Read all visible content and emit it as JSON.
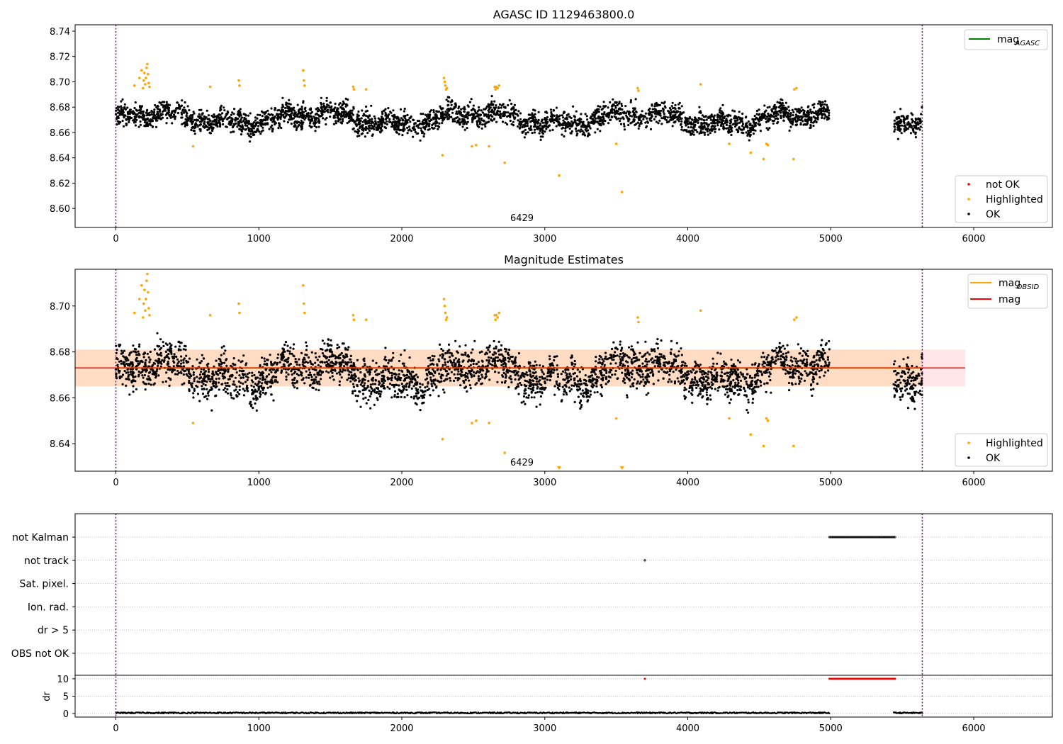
{
  "chart_data": [
    {
      "type": "scatter",
      "title": "AGASC ID 1129463800.0",
      "xlim": [
        -285,
        6550
      ],
      "ylim": [
        8.585,
        8.745
      ],
      "xticks": [
        "0",
        "1000",
        "2000",
        "3000",
        "4000",
        "5000",
        "6000"
      ],
      "yticks": [
        "8.60",
        "8.62",
        "8.64",
        "8.66",
        "8.68",
        "8.70",
        "8.72",
        "8.74"
      ],
      "annotation": "6429",
      "vlines": [
        0,
        5640
      ],
      "legend_upper": [
        {
          "label": "mag",
          "sub": "AGASC",
          "color": "#008000"
        }
      ],
      "legend_lower": [
        {
          "label": "not OK",
          "color": "#ff0000"
        },
        {
          "label": "Highlighted",
          "color": "#ffa500"
        },
        {
          "label": "OK",
          "color": "#000000"
        }
      ],
      "series": [
        {
          "name": "OK",
          "segments": [
            [
              0,
              4990
            ],
            [
              5440,
              5640
            ]
          ],
          "center": 8.671,
          "highlighted": [
            {
              "x": 130,
              "y": 8.697
            },
            {
              "x": 165,
              "y": 8.703
            },
            {
              "x": 180,
              "y": 8.709
            },
            {
              "x": 190,
              "y": 8.695
            },
            {
              "x": 195,
              "y": 8.701
            },
            {
              "x": 200,
              "y": 8.707
            },
            {
              "x": 205,
              "y": 8.698
            },
            {
              "x": 210,
              "y": 8.703
            },
            {
              "x": 215,
              "y": 8.711
            },
            {
              "x": 220,
              "y": 8.714
            },
            {
              "x": 225,
              "y": 8.706
            },
            {
              "x": 230,
              "y": 8.699
            },
            {
              "x": 235,
              "y": 8.696
            },
            {
              "x": 540,
              "y": 8.649
            },
            {
              "x": 660,
              "y": 8.696
            },
            {
              "x": 860,
              "y": 8.701
            },
            {
              "x": 865,
              "y": 8.697
            },
            {
              "x": 1310,
              "y": 8.709
            },
            {
              "x": 1315,
              "y": 8.701
            },
            {
              "x": 1320,
              "y": 8.697
            },
            {
              "x": 1660,
              "y": 8.696
            },
            {
              "x": 1665,
              "y": 8.694
            },
            {
              "x": 1750,
              "y": 8.694
            },
            {
              "x": 2285,
              "y": 8.642
            },
            {
              "x": 2295,
              "y": 8.703
            },
            {
              "x": 2300,
              "y": 8.7
            },
            {
              "x": 2305,
              "y": 8.697
            },
            {
              "x": 2310,
              "y": 8.694
            },
            {
              "x": 2315,
              "y": 8.695
            },
            {
              "x": 2490,
              "y": 8.649
            },
            {
              "x": 2520,
              "y": 8.65
            },
            {
              "x": 2610,
              "y": 8.649
            },
            {
              "x": 2650,
              "y": 8.696
            },
            {
              "x": 2655,
              "y": 8.694
            },
            {
              "x": 2660,
              "y": 8.696
            },
            {
              "x": 2670,
              "y": 8.695
            },
            {
              "x": 2680,
              "y": 8.697
            },
            {
              "x": 2720,
              "y": 8.636
            },
            {
              "x": 3100,
              "y": 8.626
            },
            {
              "x": 3500,
              "y": 8.651
            },
            {
              "x": 3540,
              "y": 8.613
            },
            {
              "x": 3650,
              "y": 8.695
            },
            {
              "x": 3655,
              "y": 8.693
            },
            {
              "x": 4090,
              "y": 8.698
            },
            {
              "x": 4290,
              "y": 8.651
            },
            {
              "x": 4440,
              "y": 8.644
            },
            {
              "x": 4530,
              "y": 8.639
            },
            {
              "x": 4550,
              "y": 8.651
            },
            {
              "x": 4560,
              "y": 8.65
            },
            {
              "x": 4740,
              "y": 8.639
            },
            {
              "x": 4745,
              "y": 8.694
            },
            {
              "x": 4760,
              "y": 8.695
            }
          ]
        }
      ]
    },
    {
      "type": "scatter",
      "title": "Magnitude Estimates",
      "xlim": [
        -285,
        6550
      ],
      "ylim": [
        8.628,
        8.716
      ],
      "xticks": [
        "0",
        "1000",
        "2000",
        "3000",
        "4000",
        "5000",
        "6000"
      ],
      "yticks": [
        "8.64",
        "8.66",
        "8.68",
        "8.70"
      ],
      "annotation": "6429",
      "vlines": [
        0,
        5640
      ],
      "legend_upper": [
        {
          "label": "mag",
          "sub": "OBSID",
          "color": "#ffa500"
        },
        {
          "label": "mag",
          "sub": "",
          "color": "#ff0000"
        }
      ],
      "legend_lower": [
        {
          "label": "Highlighted",
          "color": "#ffa500"
        },
        {
          "label": "OK",
          "color": "#000000"
        }
      ],
      "mag_line": 8.673,
      "mag_band": [
        8.665,
        8.681
      ],
      "obsid_band": [
        8.665,
        8.681
      ],
      "band_xlim": [
        -285,
        5940
      ],
      "obsid_band_xlim": [
        -285,
        5640
      ],
      "offscale_markers": [
        3100,
        3540
      ],
      "series": [
        {
          "name": "OK",
          "segments": [
            [
              0,
              4990
            ],
            [
              5440,
              5640
            ]
          ],
          "center": 8.671
        }
      ]
    },
    {
      "type": "scatter",
      "title": "",
      "xlim": [
        -285,
        6550
      ],
      "xticks": [
        "0",
        "1000",
        "2000",
        "3000",
        "4000",
        "5000",
        "6000"
      ],
      "vlines": [
        0,
        5640
      ],
      "flag_labels": [
        "not Kalman",
        "not track",
        "Sat. pixel.",
        "Ion. rad.",
        "dr > 5",
        "OBS not OK"
      ],
      "flags": {
        "not Kalman": [
          [
            4990,
            5450
          ]
        ],
        "not track": [
          [
            3700,
            3700
          ]
        ]
      },
      "dr": {
        "ylabel": "dr",
        "yticks": [
          "0",
          "5",
          "10"
        ],
        "ylim": [
          -1,
          11
        ],
        "normal_segments": [
          [
            0,
            4990
          ],
          [
            5440,
            5640
          ]
        ],
        "normal_value": 0.2,
        "flagged_value": 10,
        "flagged_segments": [
          [
            4990,
            5450
          ],
          [
            3700,
            3700
          ]
        ]
      }
    }
  ]
}
